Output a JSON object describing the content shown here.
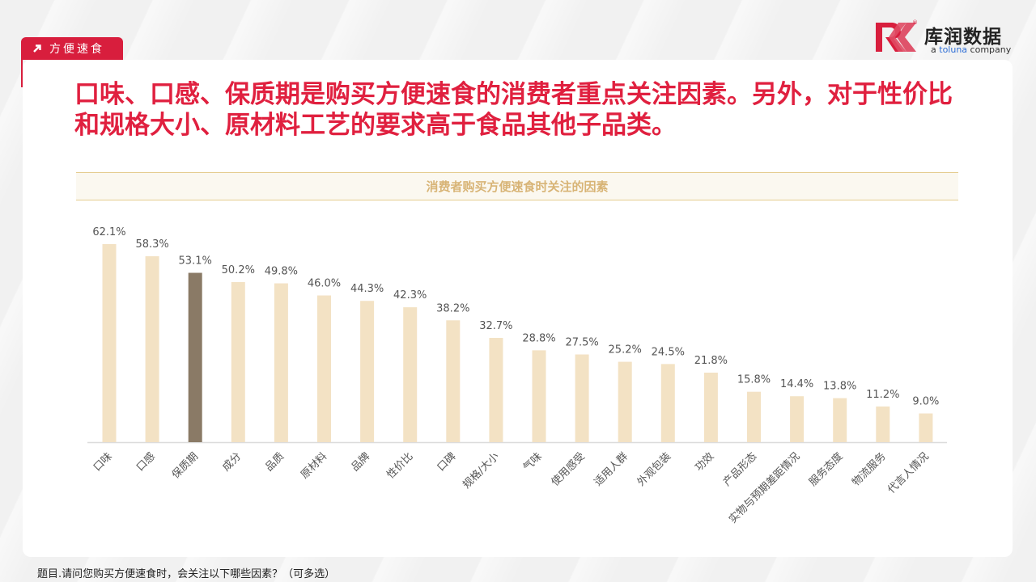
{
  "tag": {
    "label": "方便速食"
  },
  "logo": {
    "brand": "库润数据",
    "sub_prefix": "a ",
    "sub_brand": "toluna",
    "sub_suffix": " company",
    "registered": "®"
  },
  "headline": "口味、口感、保质期是购买方便速食的消费者重点关注因素。另外，对于性价比和规格大小、原材料工艺的要求高于食品其他子品类。",
  "footnote": "题目.请问您购买方便速食时，会关注以下哪些因素？（可多选）",
  "colors": {
    "accent_red": "#d81e3d",
    "bar_default": "#f3e2c4",
    "bar_highlight": "#8a7a66",
    "title_gold": "#d8b476"
  },
  "chart_data": {
    "type": "bar",
    "title": "消费者购买方便速食时关注的因素",
    "categories": [
      "口味",
      "口感",
      "保质期",
      "成分",
      "品质",
      "原材料",
      "品牌",
      "性价比",
      "口碑",
      "规格/大小",
      "气味",
      "使用感受",
      "适用人群",
      "外观包装",
      "功效",
      "产品形态",
      "实物与预期差距情况",
      "服务态度",
      "物流服务",
      "代言人情况"
    ],
    "values": [
      62.1,
      58.3,
      53.1,
      50.2,
      49.8,
      46.0,
      44.3,
      42.3,
      38.2,
      32.7,
      28.8,
      27.5,
      25.2,
      24.5,
      21.8,
      15.8,
      14.4,
      13.8,
      11.2,
      9.0
    ],
    "labels": [
      "62.1%",
      "58.3%",
      "53.1%",
      "50.2%",
      "49.8%",
      "46.0%",
      "44.3%",
      "42.3%",
      "38.2%",
      "32.7%",
      "28.8%",
      "27.5%",
      "25.2%",
      "24.5%",
      "21.8%",
      "15.8%",
      "14.4%",
      "13.8%",
      "11.2%",
      "9.0%"
    ],
    "highlight_category": "保质期",
    "ylim": [
      0,
      62.1
    ],
    "grid": false,
    "legend": "none"
  }
}
